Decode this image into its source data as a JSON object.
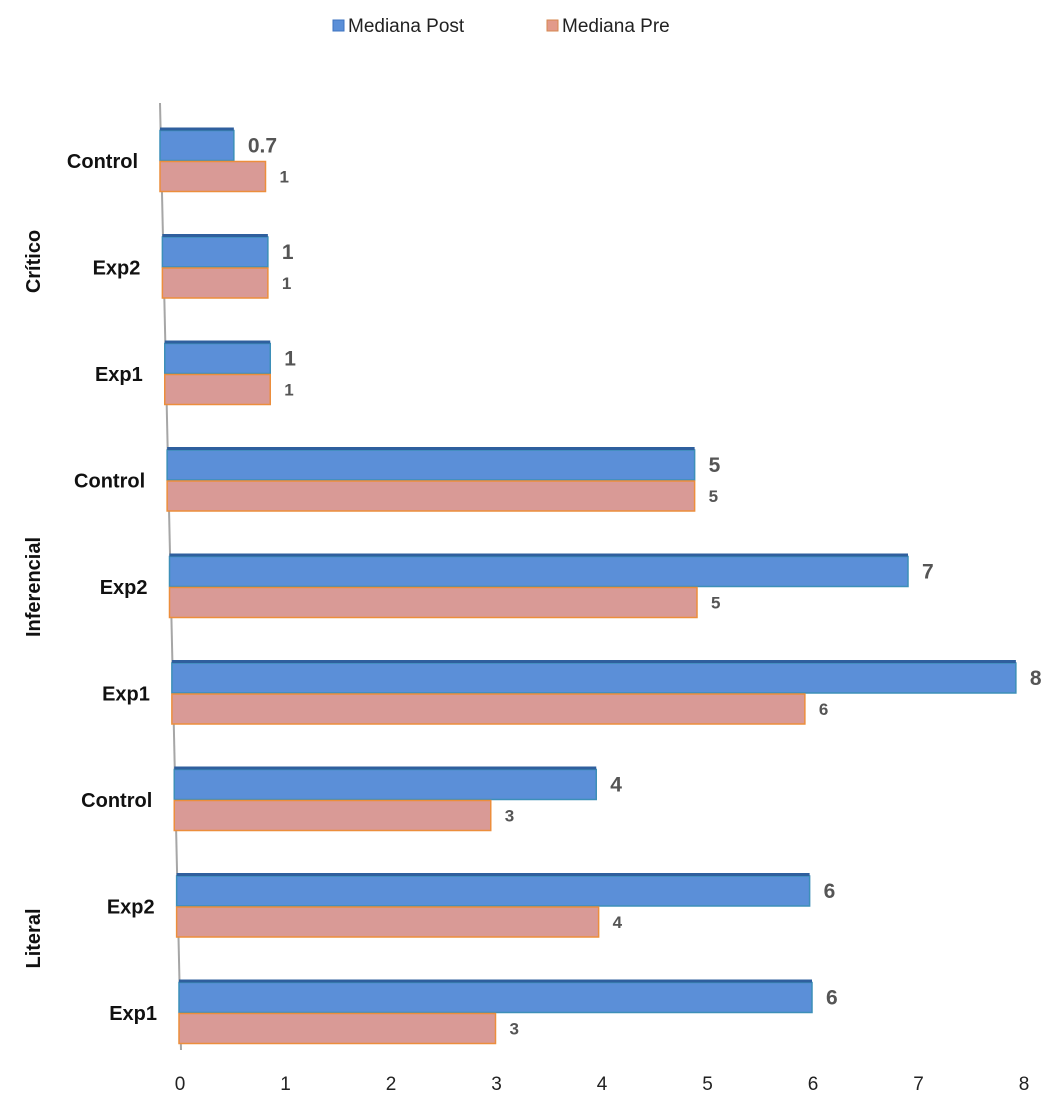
{
  "chart_data": {
    "type": "bar",
    "orientation": "horizontal",
    "xlim": [
      0,
      8
    ],
    "x_ticks": [
      "0",
      "1",
      "2",
      "3",
      "4",
      "5",
      "6",
      "7",
      "8"
    ],
    "legend_placement": "top-center",
    "groups": [
      {
        "name": "Crítico",
        "categories": [
          "Control",
          "Exp2",
          "Exp1"
        ]
      },
      {
        "name": "Inferencial",
        "categories": [
          "Control",
          "Exp2",
          "Exp1"
        ]
      },
      {
        "name": "Literal",
        "categories": [
          "Control",
          "Exp2",
          "Exp1"
        ]
      }
    ],
    "series": [
      {
        "name": "Mediana Post",
        "color": "#5b8fd8",
        "values": [
          0.7,
          1,
          1,
          5,
          7,
          8,
          4,
          6,
          6
        ],
        "labels": [
          "0.7",
          "1",
          "1",
          "5",
          "7",
          "8",
          "4",
          "6",
          "6"
        ]
      },
      {
        "name": "Mediana Pre",
        "color": "#d99a96",
        "values": [
          1,
          1,
          1,
          5,
          5,
          6,
          3,
          4,
          3
        ],
        "labels": [
          "1",
          "1",
          "1",
          "5",
          "5",
          "6",
          "3",
          "4",
          "3"
        ]
      }
    ]
  }
}
